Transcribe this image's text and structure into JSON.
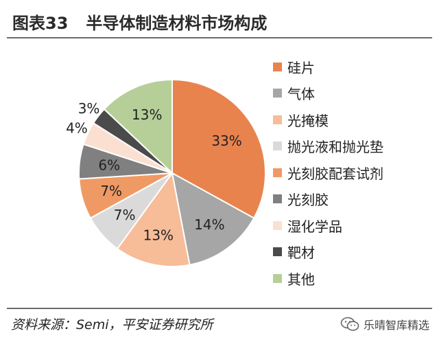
{
  "header": {
    "figure_number": "图表33",
    "title": "半导体制造材料市场构成"
  },
  "footer": {
    "source": "资料来源：Semi，平安证券研究所",
    "watermark": "乐晴智库精选",
    "watermark_icon": "wechat-icon"
  },
  "chart_data": {
    "type": "pie",
    "title": "半导体制造材料市场构成",
    "start_angle_deg": 0,
    "direction": "clockwise",
    "legend_position": "right",
    "slices": [
      {
        "name": "硅片",
        "value": 33,
        "label": "33%",
        "color": "#e9834e"
      },
      {
        "name": "气体",
        "value": 14,
        "label": "14%",
        "color": "#a6a6a6"
      },
      {
        "name": "光掩模",
        "value": 13,
        "label": "13%",
        "color": "#f7bc98"
      },
      {
        "name": "抛光液和抛光垫",
        "value": 7,
        "label": "7%",
        "color": "#dadada"
      },
      {
        "name": "光刻胶配套试剂",
        "value": 7,
        "label": "7%",
        "color": "#ef9a64"
      },
      {
        "name": "光刻胶",
        "value": 6,
        "label": "6%",
        "color": "#808080"
      },
      {
        "name": "湿化学品",
        "value": 4,
        "label": "4%",
        "color": "#fbe0d1"
      },
      {
        "name": "靶材",
        "value": 3,
        "label": "3%",
        "color": "#4b4b4b"
      },
      {
        "name": "其他",
        "value": 13,
        "label": "13%",
        "color": "#b6cf99"
      }
    ]
  }
}
